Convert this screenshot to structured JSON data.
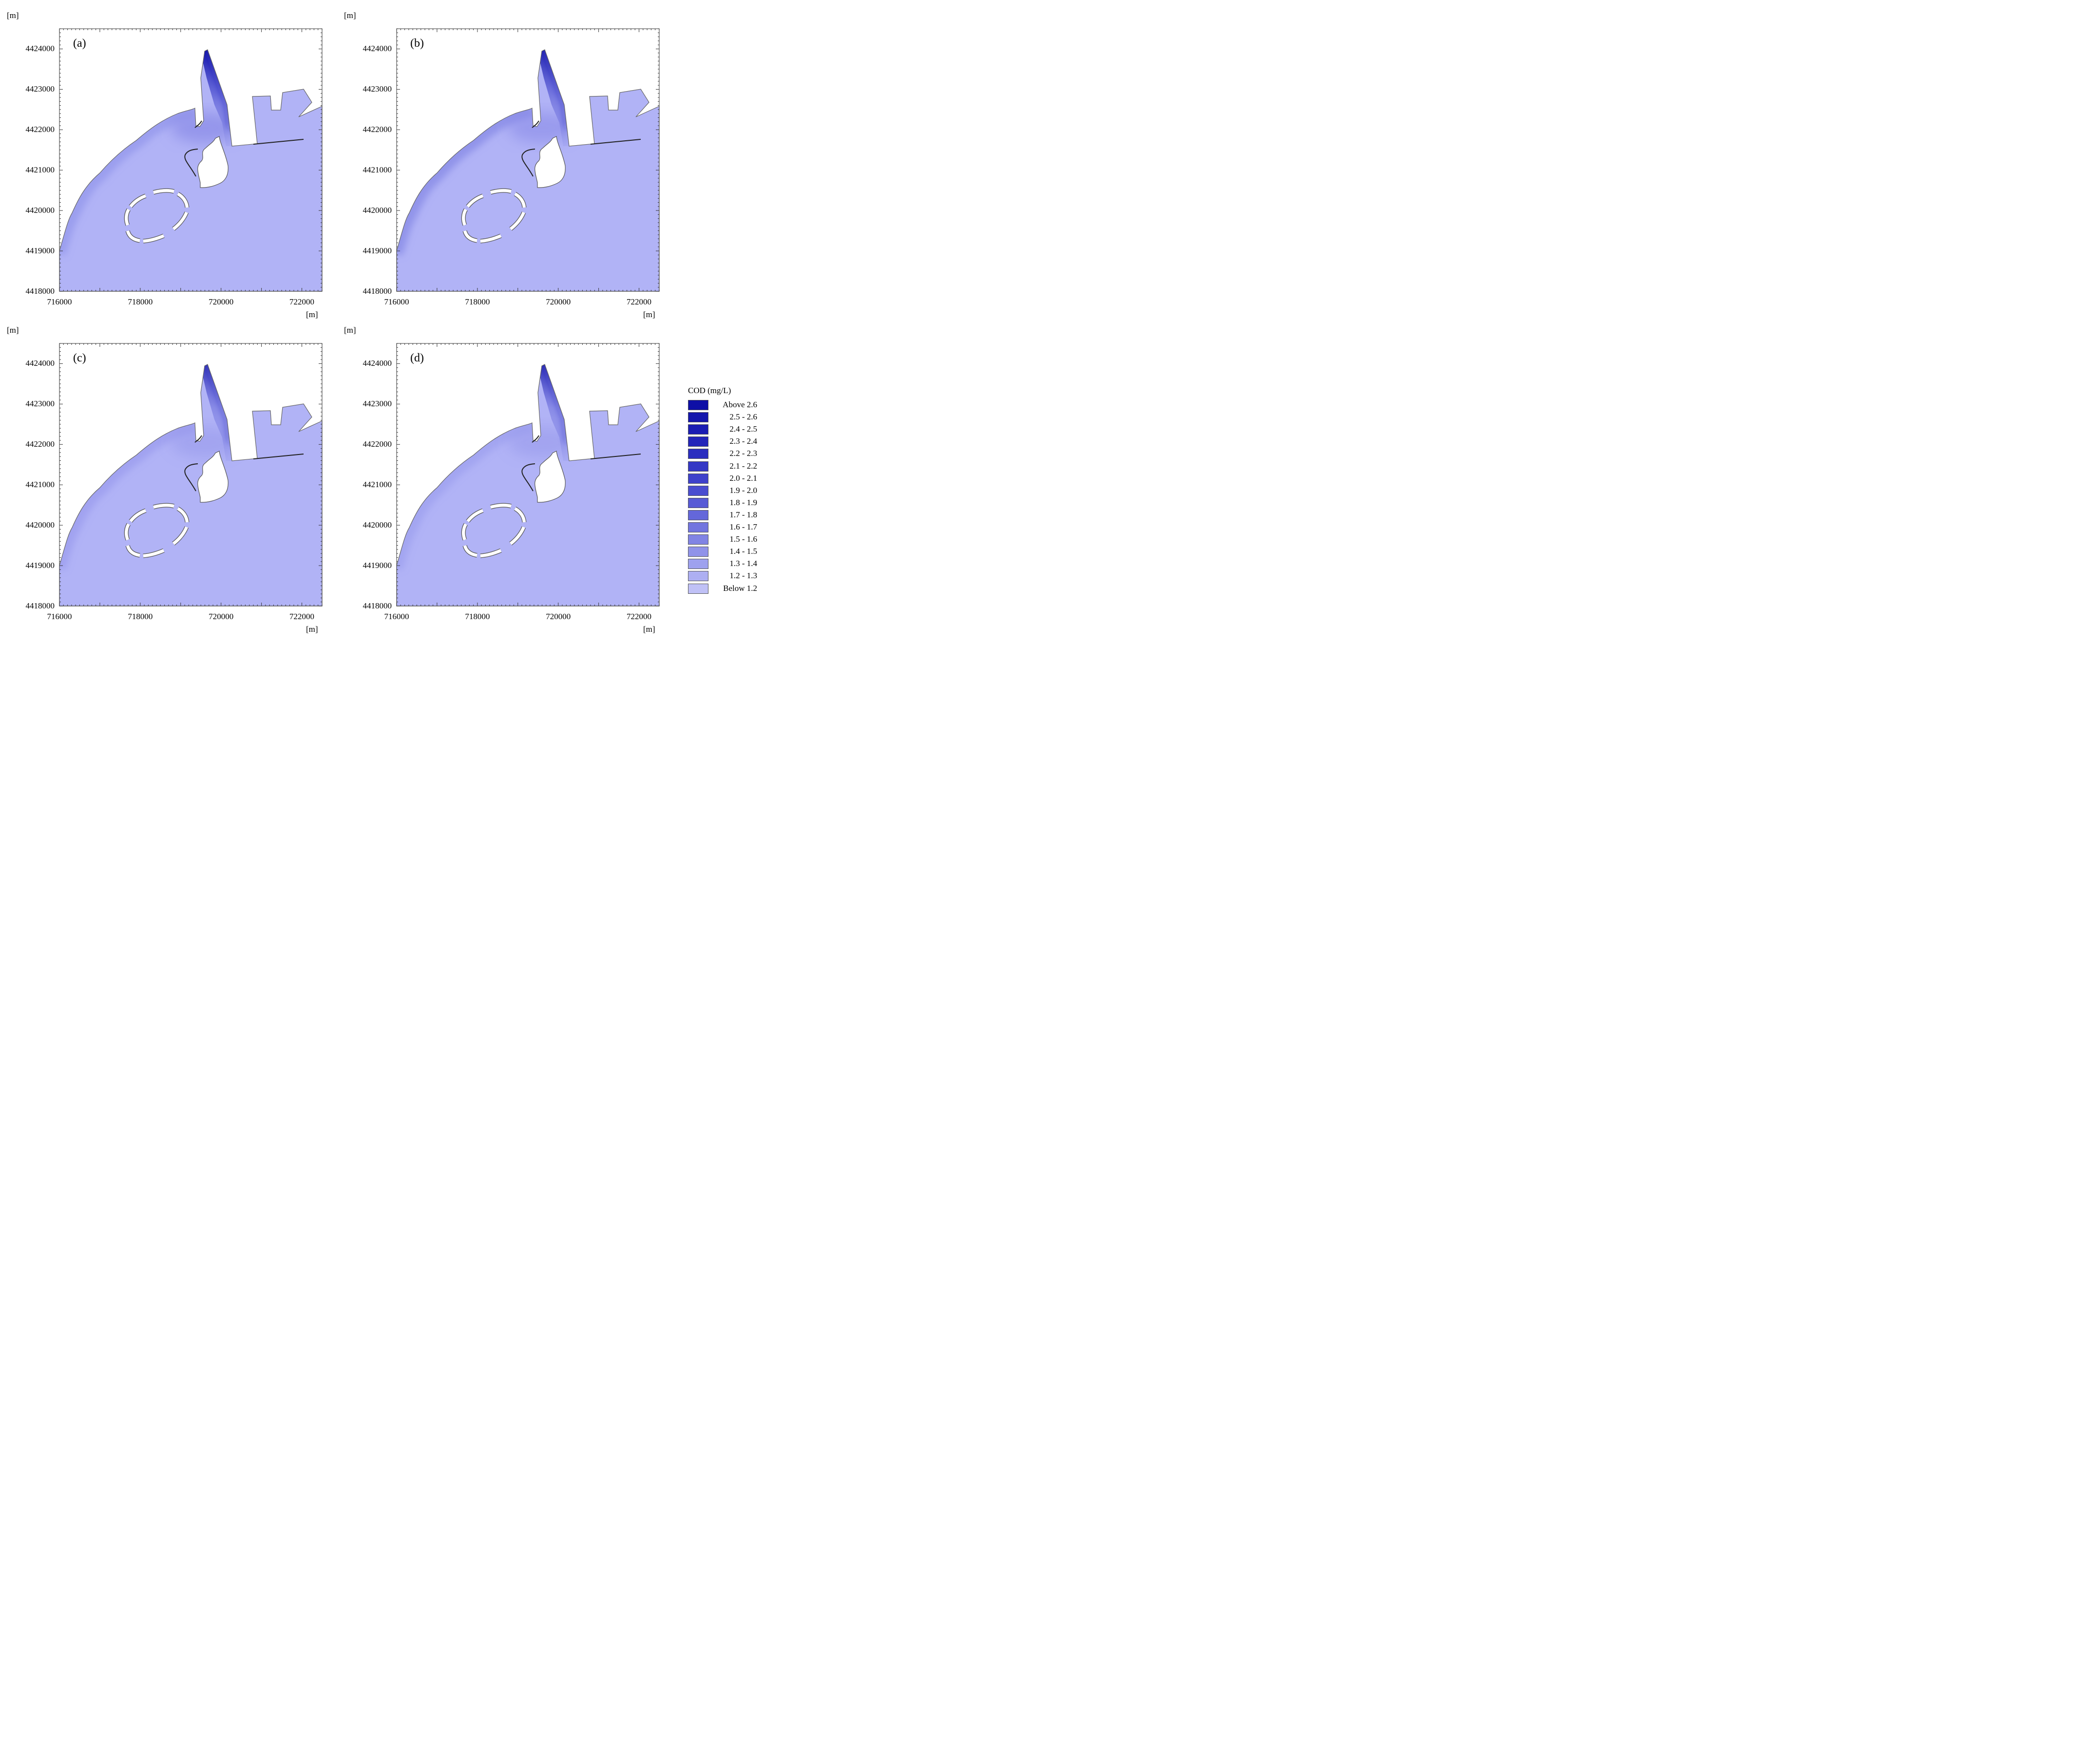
{
  "units": {
    "x": "[m]",
    "y": "[m]"
  },
  "colors": {
    "water_base": "#b1b3f6",
    "land": "#ffffff",
    "frame": "#555555"
  },
  "axes": {
    "x_ticks": [
      "716000",
      "718000",
      "720000",
      "722000"
    ],
    "y_ticks": [
      "4424000",
      "4423000",
      "4422000",
      "4421000",
      "4420000",
      "4419000",
      "4418000"
    ],
    "x_range": [
      716000,
      722500
    ],
    "y_range": [
      4418000,
      4424500
    ]
  },
  "panels": [
    {
      "label": "(a)",
      "outfall_band": [
        0.95,
        0.65
      ],
      "coastal_band": 0.45
    },
    {
      "label": "(b)",
      "outfall_band": [
        0.85,
        0.55
      ],
      "coastal_band": 0.65
    },
    {
      "label": "(c)",
      "outfall_band": [
        0.75,
        0.35
      ],
      "coastal_band": 0.35
    },
    {
      "label": "(d)",
      "outfall_band": [
        0.8,
        0.35
      ],
      "coastal_band": 0.3
    }
  ],
  "legend": {
    "title": "COD (mg/L)",
    "items": [
      {
        "label": "Above 2.6",
        "color": "#0e0fa6"
      },
      {
        "label": "2.5 - 2.6",
        "color": "#1416ac"
      },
      {
        "label": "2.4 - 2.5",
        "color": "#1b1db3"
      },
      {
        "label": "2.3 - 2.4",
        "color": "#2325b9"
      },
      {
        "label": "2.2 - 2.3",
        "color": "#2b2ebf"
      },
      {
        "label": "2.1 - 2.2",
        "color": "#3437c5"
      },
      {
        "label": "2.0 - 2.1",
        "color": "#3e41cb"
      },
      {
        "label": "1.9 - 2.0",
        "color": "#4a4dd0"
      },
      {
        "label": "1.8 - 1.9",
        "color": "#575ad5"
      },
      {
        "label": "1.7 - 1.8",
        "color": "#6467da"
      },
      {
        "label": "1.6 - 1.7",
        "color": "#7275df"
      },
      {
        "label": "1.5 - 1.6",
        "color": "#8184e4"
      },
      {
        "label": "1.4 - 1.5",
        "color": "#9093e9"
      },
      {
        "label": "1.3 - 1.4",
        "color": "#9ea1ee"
      },
      {
        "label": "1.2 - 1.3",
        "color": "#adaff2"
      },
      {
        "label": "Below 1.2",
        "color": "#c0c1f6"
      }
    ]
  }
}
